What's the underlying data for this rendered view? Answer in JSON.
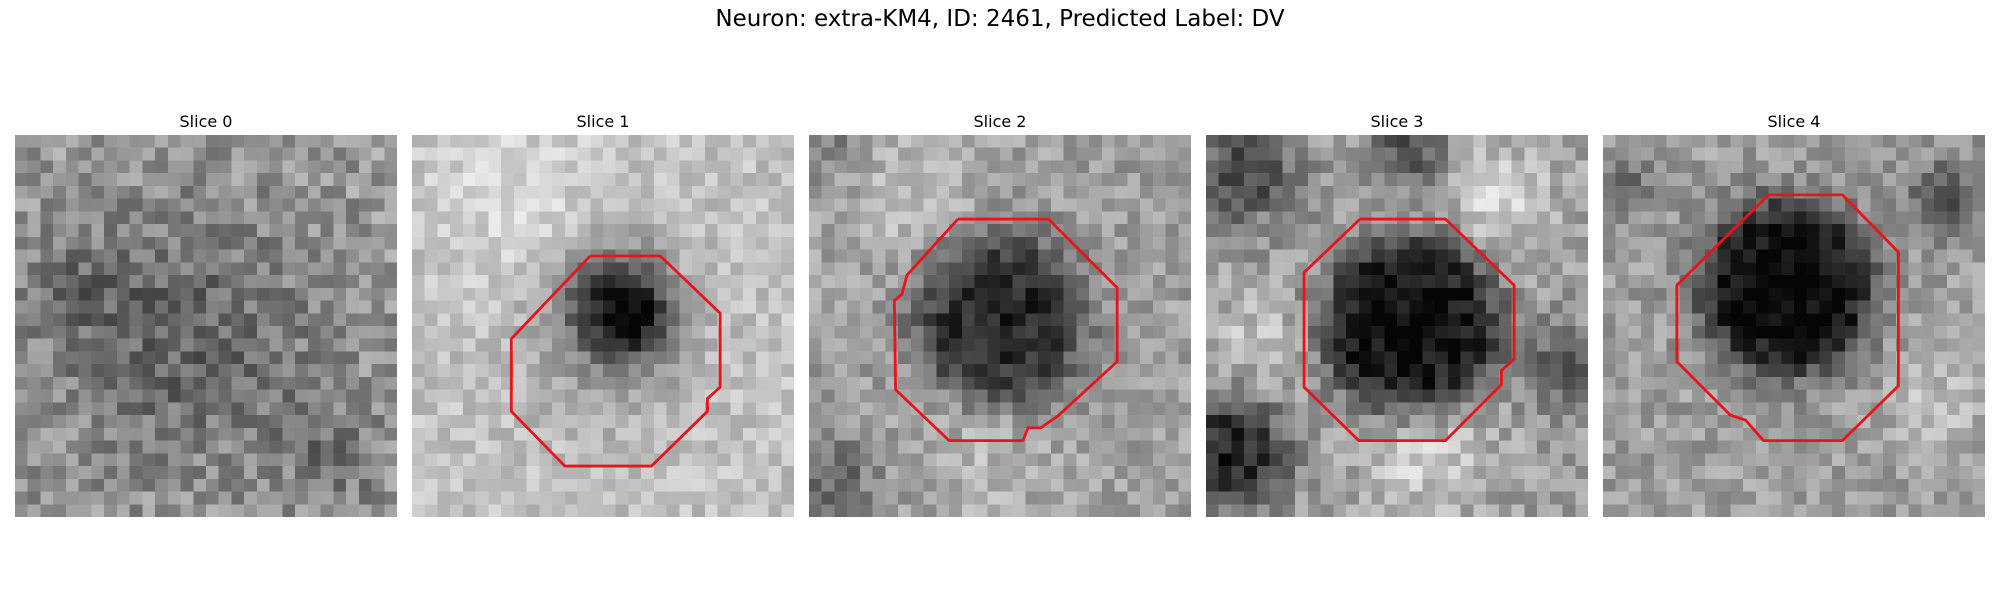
{
  "title": "Neuron: extra-KM4, ID: 2461, Predicted Label: DV",
  "slices": [
    {
      "title": "Slice 0",
      "has_roi": false
    },
    {
      "title": "Slice 1",
      "has_roi": true
    },
    {
      "title": "Slice 2",
      "has_roi": true
    },
    {
      "title": "Slice 3",
      "has_roi": true
    },
    {
      "title": "Slice 4",
      "has_roi": true
    }
  ],
  "colors": {
    "roi_outline": "#e8141a",
    "background": "#ffffff"
  }
}
